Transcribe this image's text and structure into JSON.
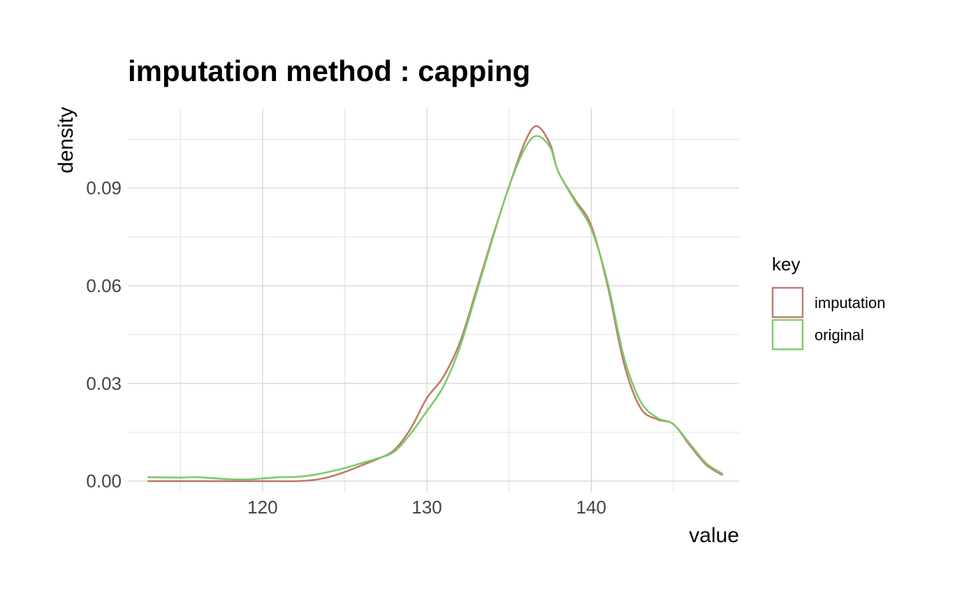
{
  "chart_data": {
    "type": "line",
    "title": "imputation method : capping",
    "xlabel": "value",
    "ylabel": "density",
    "xlim": [
      111.8,
      149.0
    ],
    "ylim": [
      -0.0035,
      0.1145
    ],
    "x_ticks": [
      120,
      130,
      140
    ],
    "x_minor": [
      115,
      125,
      135,
      145
    ],
    "y_ticks": [
      0.0,
      0.03,
      0.06,
      0.09
    ],
    "y_tick_labels": [
      "0.00",
      "0.03",
      "0.06",
      "0.09"
    ],
    "y_minor": [
      0.015,
      0.045,
      0.075,
      0.105
    ],
    "grid": true,
    "legend": {
      "title": "key",
      "position": "right"
    },
    "series": [
      {
        "name": "imputation",
        "color": "#C07A6E",
        "x": [
          113,
          115,
          118,
          120,
          122,
          123,
          124,
          125,
          126,
          127,
          128,
          129,
          130,
          131,
          132,
          133,
          134,
          135,
          136,
          136.7,
          137.5,
          138,
          139,
          140,
          141,
          142,
          143,
          144,
          145,
          146,
          147,
          148
        ],
        "y": [
          0.0,
          0.0,
          0.0,
          0.0,
          0.0,
          0.0003,
          0.0012,
          0.0028,
          0.0048,
          0.0068,
          0.0095,
          0.016,
          0.0255,
          0.032,
          0.0425,
          0.0585,
          0.075,
          0.0905,
          0.1045,
          0.109,
          0.1035,
          0.095,
          0.0865,
          0.0785,
          0.06,
          0.036,
          0.0225,
          0.019,
          0.0175,
          0.011,
          0.005,
          0.0018
        ]
      },
      {
        "name": "original",
        "color": "#7DCB6B",
        "x": [
          113,
          115,
          116,
          118,
          119,
          120,
          121,
          122,
          123,
          124,
          125,
          126,
          127,
          128,
          129,
          130,
          131,
          132,
          133,
          134,
          135,
          136,
          136.7,
          137.5,
          138,
          139,
          140,
          141,
          142,
          143,
          144,
          145,
          146,
          147,
          148
        ],
        "y": [
          0.0012,
          0.0011,
          0.0012,
          0.0006,
          0.0005,
          0.0008,
          0.0012,
          0.0013,
          0.0018,
          0.0028,
          0.004,
          0.0055,
          0.007,
          0.009,
          0.0145,
          0.0215,
          0.029,
          0.041,
          0.0575,
          0.0745,
          0.0905,
          0.1025,
          0.106,
          0.1025,
          0.095,
          0.086,
          0.0775,
          0.061,
          0.038,
          0.0245,
          0.0195,
          0.0175,
          0.0115,
          0.0055,
          0.0022
        ]
      }
    ]
  }
}
